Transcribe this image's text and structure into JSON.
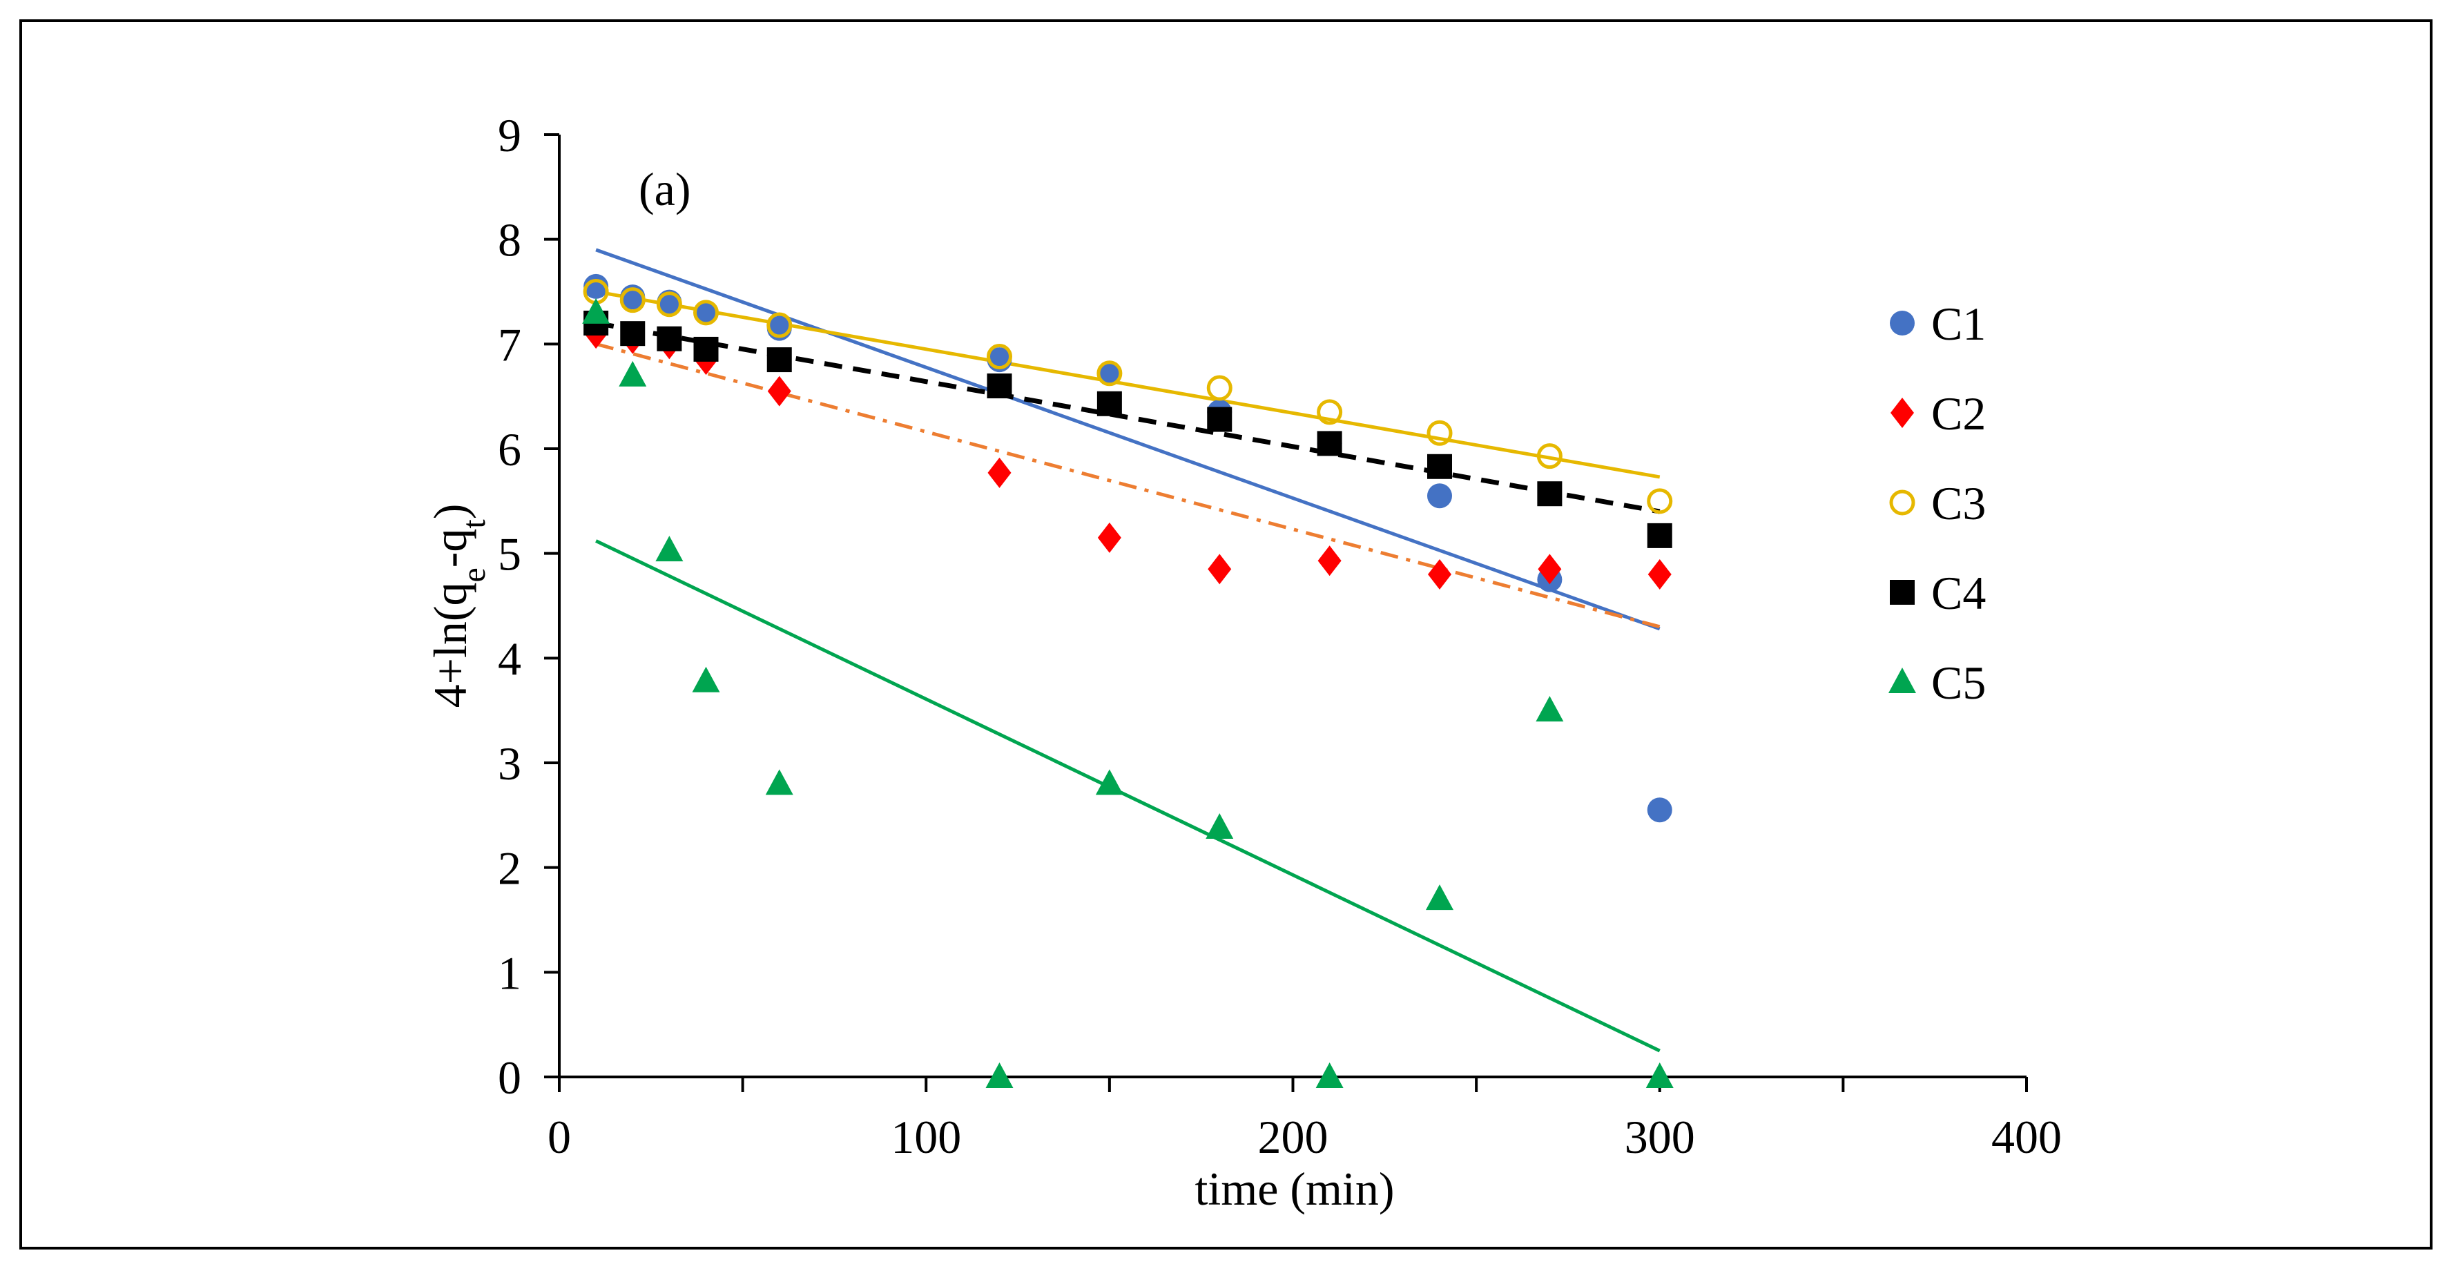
{
  "chart_data": {
    "type": "scatter",
    "title": "",
    "annotation": "(a)",
    "xlabel": "time (min)",
    "ylabel_parts": [
      "4+ln(q",
      "e",
      "-q",
      "t",
      ")"
    ],
    "xlim": [
      0,
      400
    ],
    "ylim": [
      0,
      9
    ],
    "x_ticks": [
      "0",
      "100",
      "200",
      "300",
      "400"
    ],
    "y_ticks": [
      "0",
      "1",
      "2",
      "3",
      "4",
      "5",
      "6",
      "7",
      "8",
      "9"
    ],
    "grid": false,
    "legend_position": "right",
    "series": [
      {
        "name": "C1",
        "marker": "circle-filled",
        "color": "#4472C4",
        "points": [
          [
            10,
            7.55
          ],
          [
            20,
            7.45
          ],
          [
            30,
            7.4
          ],
          [
            40,
            7.3
          ],
          [
            60,
            7.15
          ],
          [
            120,
            6.85
          ],
          [
            150,
            6.72
          ],
          [
            180,
            6.35
          ],
          [
            210,
            6.05
          ],
          [
            240,
            5.55
          ],
          [
            270,
            4.75
          ],
          [
            300,
            2.55
          ]
        ],
        "trendline": {
          "x": [
            10,
            300
          ],
          "y": [
            7.9,
            4.28
          ],
          "style": "solid",
          "color": "#4472C4"
        }
      },
      {
        "name": "C2",
        "marker": "diamond",
        "color": "#FF0000",
        "points": [
          [
            10,
            7.1
          ],
          [
            20,
            7.05
          ],
          [
            30,
            7.0
          ],
          [
            40,
            6.85
          ],
          [
            60,
            6.55
          ],
          [
            120,
            5.77
          ],
          [
            150,
            5.15
          ],
          [
            180,
            4.85
          ],
          [
            210,
            4.93
          ],
          [
            240,
            4.8
          ],
          [
            270,
            4.85
          ],
          [
            300,
            4.8
          ]
        ],
        "trendline": {
          "x": [
            10,
            300
          ],
          "y": [
            7.0,
            4.3
          ],
          "style": "dash-dot",
          "color": "#ED7D31"
        }
      },
      {
        "name": "C3",
        "marker": "circle-open",
        "color": "#E6B800",
        "points": [
          [
            10,
            7.5
          ],
          [
            20,
            7.42
          ],
          [
            30,
            7.38
          ],
          [
            40,
            7.3
          ],
          [
            60,
            7.18
          ],
          [
            120,
            6.88
          ],
          [
            150,
            6.72
          ],
          [
            180,
            6.58
          ],
          [
            210,
            6.35
          ],
          [
            240,
            6.15
          ],
          [
            270,
            5.93
          ],
          [
            300,
            5.5
          ]
        ],
        "trendline": {
          "x": [
            10,
            300
          ],
          "y": [
            7.5,
            5.73
          ],
          "style": "solid",
          "color": "#E6B800"
        }
      },
      {
        "name": "C4",
        "marker": "square",
        "color": "#000000",
        "points": [
          [
            10,
            7.2
          ],
          [
            20,
            7.1
          ],
          [
            30,
            7.05
          ],
          [
            40,
            6.95
          ],
          [
            60,
            6.85
          ],
          [
            120,
            6.6
          ],
          [
            150,
            6.43
          ],
          [
            180,
            6.28
          ],
          [
            210,
            6.05
          ],
          [
            240,
            5.83
          ],
          [
            270,
            5.57
          ],
          [
            300,
            5.17
          ]
        ],
        "trendline": {
          "x": [
            10,
            300
          ],
          "y": [
            7.2,
            5.4
          ],
          "style": "dashed",
          "color": "#000000"
        }
      },
      {
        "name": "C5",
        "marker": "triangle",
        "color": "#00A550",
        "points": [
          [
            10,
            7.3
          ],
          [
            20,
            6.7
          ],
          [
            30,
            5.03
          ],
          [
            40,
            3.78
          ],
          [
            60,
            2.8
          ],
          [
            120,
            0.0
          ],
          [
            150,
            2.8
          ],
          [
            180,
            2.38
          ],
          [
            210,
            0.0
          ],
          [
            240,
            1.7
          ],
          [
            270,
            3.5
          ],
          [
            300,
            0.0
          ]
        ],
        "trendline": {
          "x": [
            10,
            300
          ],
          "y": [
            5.12,
            0.25
          ],
          "style": "solid",
          "color": "#00A550"
        }
      }
    ]
  }
}
